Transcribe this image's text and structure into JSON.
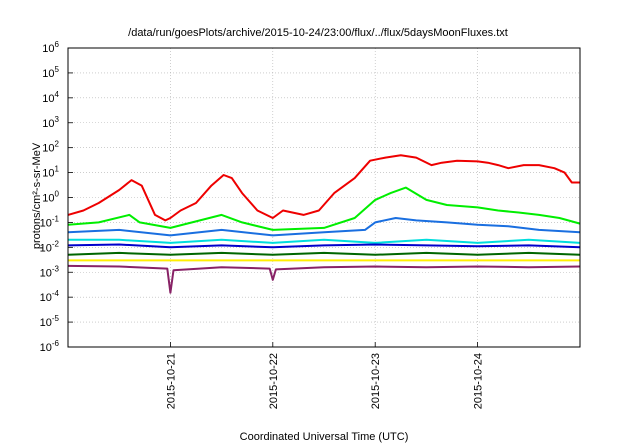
{
  "chart_data": {
    "type": "line",
    "title": "/data/run/goesPlots/archive/2015-10-24/23:00/flux/../flux/5daysMoonFluxes.txt",
    "xlabel": "Coordinated Universal Time (UTC)",
    "ylabel": "protons/cm²-s-sr-MeV",
    "yscale": "log",
    "ylim": [
      1e-06,
      1000000.0
    ],
    "xlim_days": [
      0,
      5
    ],
    "x_ticks": [
      {
        "label": "2015-10-21",
        "day": 1
      },
      {
        "label": "2015-10-22",
        "day": 2
      },
      {
        "label": "2015-10-23",
        "day": 3
      },
      {
        "label": "2015-10-24",
        "day": 4
      }
    ],
    "y_ticks": [
      {
        "base": "10",
        "exp": "6",
        "value": 1000000.0
      },
      {
        "base": "10",
        "exp": "5",
        "value": 100000.0
      },
      {
        "base": "10",
        "exp": "4",
        "value": 10000.0
      },
      {
        "base": "10",
        "exp": "3",
        "value": 1000.0
      },
      {
        "base": "10",
        "exp": "2",
        "value": 100.0
      },
      {
        "base": "10",
        "exp": "1",
        "value": 10.0
      },
      {
        "base": "10",
        "exp": "0",
        "value": 1.0
      },
      {
        "base": "10",
        "exp": "-1",
        "value": 0.1
      },
      {
        "base": "10",
        "exp": "-2",
        "value": 0.01
      },
      {
        "base": "10",
        "exp": "-3",
        "value": 0.001
      },
      {
        "base": "10",
        "exp": "-4",
        "value": 0.0001
      },
      {
        "base": "10",
        "exp": "-5",
        "value": 1e-05
      },
      {
        "base": "10",
        "exp": "-6",
        "value": 1e-06
      }
    ],
    "grid": true,
    "series": [
      {
        "color": "#ee0000",
        "points": [
          [
            0,
            0.2
          ],
          [
            0.15,
            0.3
          ],
          [
            0.3,
            0.6
          ],
          [
            0.5,
            2
          ],
          [
            0.62,
            5
          ],
          [
            0.72,
            3
          ],
          [
            0.85,
            0.2
          ],
          [
            0.95,
            0.12
          ],
          [
            1.0,
            0.15
          ],
          [
            1.1,
            0.3
          ],
          [
            1.25,
            0.6
          ],
          [
            1.4,
            3
          ],
          [
            1.52,
            8
          ],
          [
            1.6,
            6
          ],
          [
            1.7,
            1.5
          ],
          [
            1.85,
            0.3
          ],
          [
            2.0,
            0.15
          ],
          [
            2.1,
            0.3
          ],
          [
            2.3,
            0.2
          ],
          [
            2.45,
            0.3
          ],
          [
            2.6,
            1.5
          ],
          [
            2.8,
            6
          ],
          [
            2.95,
            30
          ],
          [
            3.1,
            40
          ],
          [
            3.25,
            50
          ],
          [
            3.4,
            40
          ],
          [
            3.55,
            20
          ],
          [
            3.65,
            25
          ],
          [
            3.8,
            30
          ],
          [
            4.0,
            28
          ],
          [
            4.1,
            25
          ],
          [
            4.2,
            20
          ],
          [
            4.3,
            15
          ],
          [
            4.45,
            20
          ],
          [
            4.6,
            20
          ],
          [
            4.75,
            15
          ],
          [
            4.85,
            10
          ],
          [
            4.92,
            4
          ],
          [
            5.0,
            4
          ]
        ]
      },
      {
        "color": "#00ee00",
        "points": [
          [
            0,
            0.08
          ],
          [
            0.3,
            0.1
          ],
          [
            0.6,
            0.2
          ],
          [
            0.7,
            0.1
          ],
          [
            1.0,
            0.06
          ],
          [
            1.5,
            0.2
          ],
          [
            1.7,
            0.1
          ],
          [
            2.0,
            0.05
          ],
          [
            2.5,
            0.06
          ],
          [
            2.8,
            0.15
          ],
          [
            3.0,
            0.8
          ],
          [
            3.15,
            1.5
          ],
          [
            3.3,
            2.5
          ],
          [
            3.5,
            0.8
          ],
          [
            3.7,
            0.5
          ],
          [
            4.0,
            0.4
          ],
          [
            4.2,
            0.3
          ],
          [
            4.4,
            0.25
          ],
          [
            4.6,
            0.2
          ],
          [
            4.8,
            0.15
          ],
          [
            5.0,
            0.09
          ]
        ]
      },
      {
        "color": "#1a6fe0",
        "points": [
          [
            0,
            0.04
          ],
          [
            0.5,
            0.05
          ],
          [
            1.0,
            0.03
          ],
          [
            1.5,
            0.05
          ],
          [
            2.0,
            0.03
          ],
          [
            2.5,
            0.04
          ],
          [
            2.9,
            0.05
          ],
          [
            3.0,
            0.1
          ],
          [
            3.2,
            0.15
          ],
          [
            3.4,
            0.12
          ],
          [
            3.7,
            0.1
          ],
          [
            4.0,
            0.08
          ],
          [
            4.3,
            0.07
          ],
          [
            4.6,
            0.05
          ],
          [
            5.0,
            0.04
          ]
        ]
      },
      {
        "color": "#00dddd",
        "points": [
          [
            0,
            0.02
          ],
          [
            0.5,
            0.02
          ],
          [
            1.0,
            0.015
          ],
          [
            1.5,
            0.02
          ],
          [
            2.0,
            0.015
          ],
          [
            2.5,
            0.02
          ],
          [
            3.0,
            0.015
          ],
          [
            3.5,
            0.02
          ],
          [
            4.0,
            0.015
          ],
          [
            4.5,
            0.02
          ],
          [
            5.0,
            0.015
          ]
        ]
      },
      {
        "color": "#0000cc",
        "points": [
          [
            0,
            0.012
          ],
          [
            0.5,
            0.013
          ],
          [
            1.0,
            0.01
          ],
          [
            1.5,
            0.012
          ],
          [
            2.0,
            0.01
          ],
          [
            2.5,
            0.012
          ],
          [
            3.0,
            0.013
          ],
          [
            3.5,
            0.012
          ],
          [
            4.0,
            0.011
          ],
          [
            4.5,
            0.012
          ],
          [
            5.0,
            0.01
          ]
        ]
      },
      {
        "color": "#006600",
        "points": [
          [
            0,
            0.005
          ],
          [
            0.5,
            0.006
          ],
          [
            1.0,
            0.005
          ],
          [
            1.5,
            0.006
          ],
          [
            2.0,
            0.005
          ],
          [
            2.5,
            0.006
          ],
          [
            3.0,
            0.005
          ],
          [
            3.5,
            0.006
          ],
          [
            4.0,
            0.005
          ],
          [
            4.5,
            0.006
          ],
          [
            5.0,
            0.005
          ]
        ]
      },
      {
        "color": "#ffee00",
        "points": [
          [
            0,
            0.003
          ],
          [
            1.0,
            0.003
          ],
          [
            2.0,
            0.003
          ],
          [
            3.0,
            0.003
          ],
          [
            4.0,
            0.003
          ],
          [
            5.0,
            0.003
          ]
        ]
      },
      {
        "color": "#882266",
        "points": [
          [
            0,
            0.0018
          ],
          [
            0.5,
            0.0017
          ],
          [
            0.97,
            0.0014
          ],
          [
            1.0,
            0.00015
          ],
          [
            1.03,
            0.0012
          ],
          [
            1.5,
            0.0016
          ],
          [
            1.97,
            0.0014
          ],
          [
            2.0,
            0.0005
          ],
          [
            2.03,
            0.0013
          ],
          [
            2.5,
            0.0016
          ],
          [
            3.0,
            0.0017
          ],
          [
            3.5,
            0.0016
          ],
          [
            4.0,
            0.0017
          ],
          [
            4.5,
            0.0016
          ],
          [
            5.0,
            0.0017
          ]
        ]
      }
    ]
  }
}
